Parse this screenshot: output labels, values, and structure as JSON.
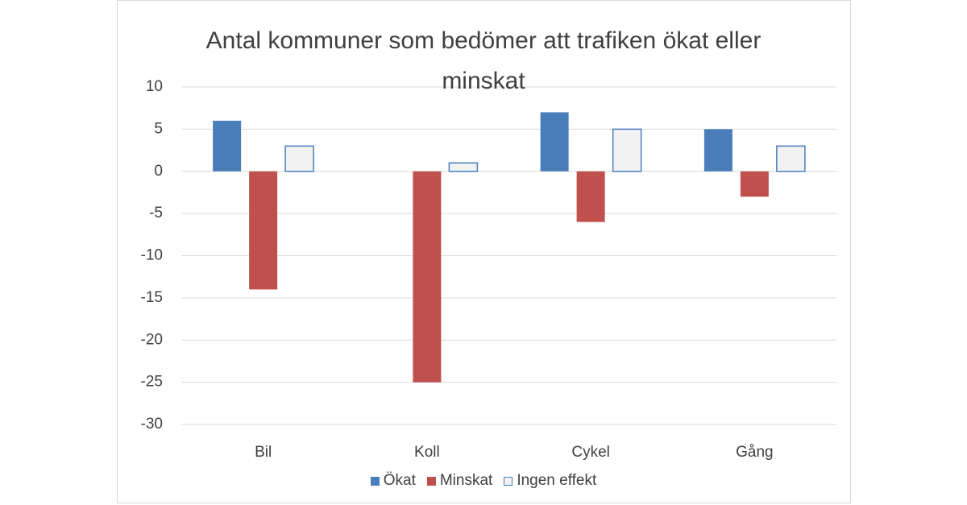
{
  "chart_data": {
    "type": "bar",
    "title": "Antal kommuner som bedömer att trafiken ökat eller minskat",
    "categories": [
      "Bil",
      "Koll",
      "Cykel",
      "Gång"
    ],
    "series": [
      {
        "name": "Ökat",
        "color": "#4a7ebb",
        "values": [
          6,
          0,
          7,
          5
        ]
      },
      {
        "name": "Minskat",
        "color": "#c0504d",
        "values": [
          -14,
          -25,
          -6,
          -3
        ]
      },
      {
        "name": "Ingen effekt",
        "color": "#f2f2f2",
        "edgecolor": "#4a7ebb",
        "values": [
          3,
          1,
          5,
          3
        ]
      }
    ],
    "ylim": [
      -30,
      10
    ],
    "yticks": [
      -30,
      -25,
      -20,
      -15,
      -10,
      -5,
      0,
      5,
      10
    ],
    "grid": true,
    "legend": "bottom"
  }
}
